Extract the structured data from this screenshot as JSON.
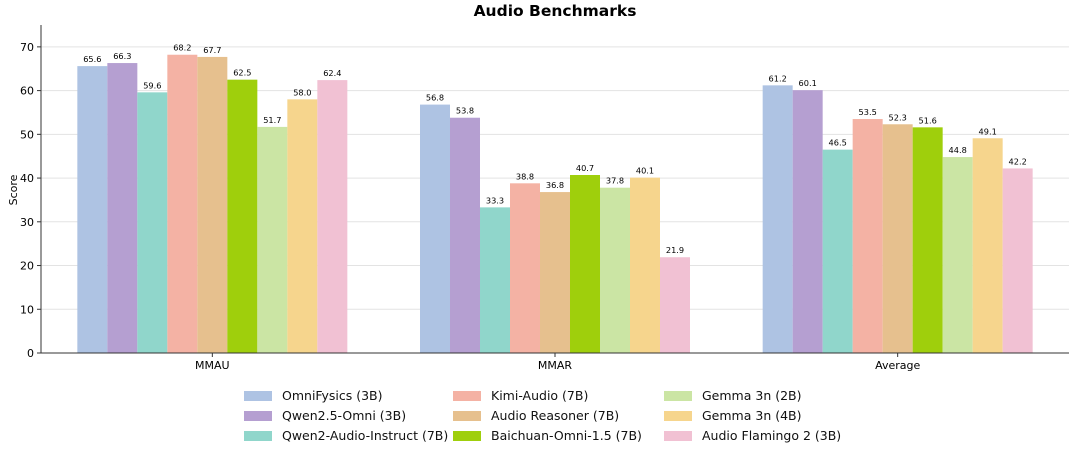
{
  "chart_data": {
    "type": "bar",
    "title": "Audio Benchmarks",
    "xlabel": "",
    "ylabel": "Score",
    "ylim": [
      0,
      75
    ],
    "yticks": [
      0,
      10,
      20,
      30,
      40,
      50,
      60,
      70
    ],
    "grid": "horizontal",
    "legend_placement": "bottom-center",
    "categories": [
      "MMAU",
      "MMAR",
      "Average"
    ],
    "series": [
      {
        "name": "OmniFysics (3B)",
        "color": "#aec3e3",
        "values": [
          65.6,
          56.8,
          61.2
        ]
      },
      {
        "name": "Qwen2.5-Omni (3B)",
        "color": "#b59fd1",
        "values": [
          66.3,
          53.8,
          60.1
        ]
      },
      {
        "name": "Qwen2-Audio-Instruct (7B)",
        "color": "#90d6cb",
        "values": [
          59.6,
          33.3,
          46.5
        ]
      },
      {
        "name": "Kimi-Audio (7B)",
        "color": "#f4b2a4",
        "values": [
          68.2,
          38.8,
          53.5
        ]
      },
      {
        "name": "Audio Reasoner (7B)",
        "color": "#e6c08e",
        "values": [
          67.7,
          36.8,
          52.3
        ]
      },
      {
        "name": "Baichuan-Omni-1.5 (7B)",
        "color": "#9fcf0c",
        "values": [
          62.5,
          40.7,
          51.6
        ]
      },
      {
        "name": "Gemma 3n (2B)",
        "color": "#cbe5a4",
        "values": [
          51.7,
          37.8,
          44.8
        ]
      },
      {
        "name": "Gemma 3n (4B)",
        "color": "#f6d58d",
        "values": [
          58.0,
          40.1,
          49.1
        ]
      },
      {
        "name": "Audio Flamingo 2 (3B)",
        "color": "#f1c1d3",
        "values": [
          62.4,
          21.9,
          42.2
        ]
      }
    ]
  }
}
